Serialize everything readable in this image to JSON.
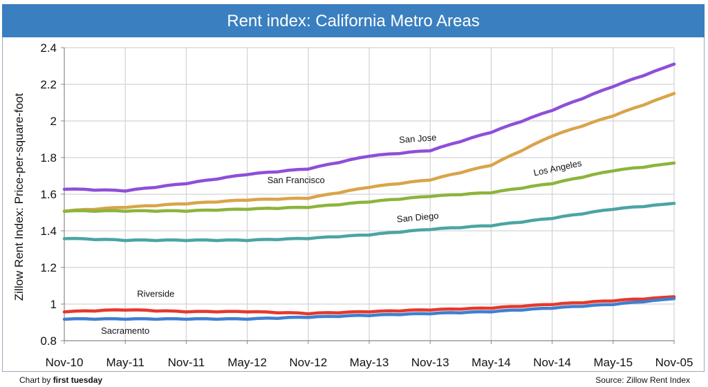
{
  "chart_data": {
    "type": "line",
    "title": "Rent index: California Metro Areas",
    "ylabel": "Zillow Rent Index: Price-per-square-foot",
    "xlabel": "",
    "x": [
      "Nov-10",
      "May-11",
      "Nov-11",
      "May-12",
      "Nov-12",
      "May-13",
      "Nov-13",
      "May-14",
      "Nov-14",
      "May-15",
      "Nov-05"
    ],
    "ylim": [
      0.8,
      2.4
    ],
    "yticks": [
      "2.4",
      "2.2",
      "2",
      "1.8",
      "1.6",
      "1.4",
      "1.2",
      "1",
      "0.8"
    ],
    "grid": true,
    "series": [
      {
        "name": "San Jose",
        "color": "#8e4fd8",
        "values": [
          1.63,
          1.62,
          1.66,
          1.71,
          1.74,
          1.81,
          1.84,
          1.94,
          2.06,
          2.19,
          2.31
        ]
      },
      {
        "name": "San Francisco",
        "color": "#d9a44a",
        "values": [
          1.51,
          1.53,
          1.55,
          1.57,
          1.58,
          1.64,
          1.68,
          1.76,
          1.92,
          2.03,
          2.15
        ]
      },
      {
        "name": "Los Angeles",
        "color": "#8db43c",
        "values": [
          1.51,
          1.51,
          1.51,
          1.52,
          1.53,
          1.56,
          1.59,
          1.61,
          1.66,
          1.73,
          1.77
        ]
      },
      {
        "name": "San Diego",
        "color": "#4aa5a3",
        "values": [
          1.36,
          1.35,
          1.35,
          1.35,
          1.36,
          1.38,
          1.41,
          1.43,
          1.47,
          1.52,
          1.55
        ]
      },
      {
        "name": "Riverside",
        "color": "#e5392c",
        "values": [
          0.96,
          0.97,
          0.96,
          0.96,
          0.95,
          0.96,
          0.97,
          0.98,
          1.0,
          1.02,
          1.04
        ]
      },
      {
        "name": "Sacramento",
        "color": "#3f7fd0",
        "values": [
          0.92,
          0.92,
          0.92,
          0.92,
          0.93,
          0.94,
          0.95,
          0.96,
          0.98,
          1.0,
          1.03
        ]
      }
    ]
  },
  "footer": {
    "credit_prefix": "Chart by ",
    "credit_name": "first tuesday",
    "source": "Source: Zillow Rent Index"
  }
}
